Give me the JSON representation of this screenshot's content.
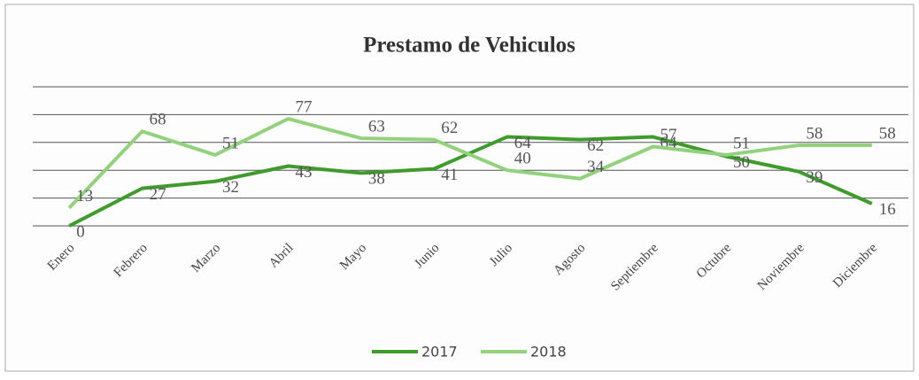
{
  "chart_data": {
    "type": "line",
    "title": "Prestamo de Vehiculos",
    "categories": [
      "Enero",
      "Febrero",
      "Marzo",
      "Abril",
      "Mayo",
      "Junio",
      "Julio",
      "Agosto",
      "Septiembre",
      "Octubre",
      "Noviembre",
      "Diciembre"
    ],
    "series": [
      {
        "name": "2017",
        "color": "#3f9c2c",
        "values": [
          0,
          27,
          32,
          43,
          38,
          41,
          64,
          62,
          64,
          50,
          39,
          16
        ]
      },
      {
        "name": "2018",
        "color": "#92d27c",
        "values": [
          13,
          68,
          51,
          77,
          63,
          62,
          40,
          34,
          57,
          51,
          58,
          58
        ]
      }
    ],
    "ylim": [
      0,
      100
    ],
    "yticks": [
      0,
      20,
      40,
      60,
      80,
      100
    ],
    "grid": true,
    "legend": "bottom"
  }
}
